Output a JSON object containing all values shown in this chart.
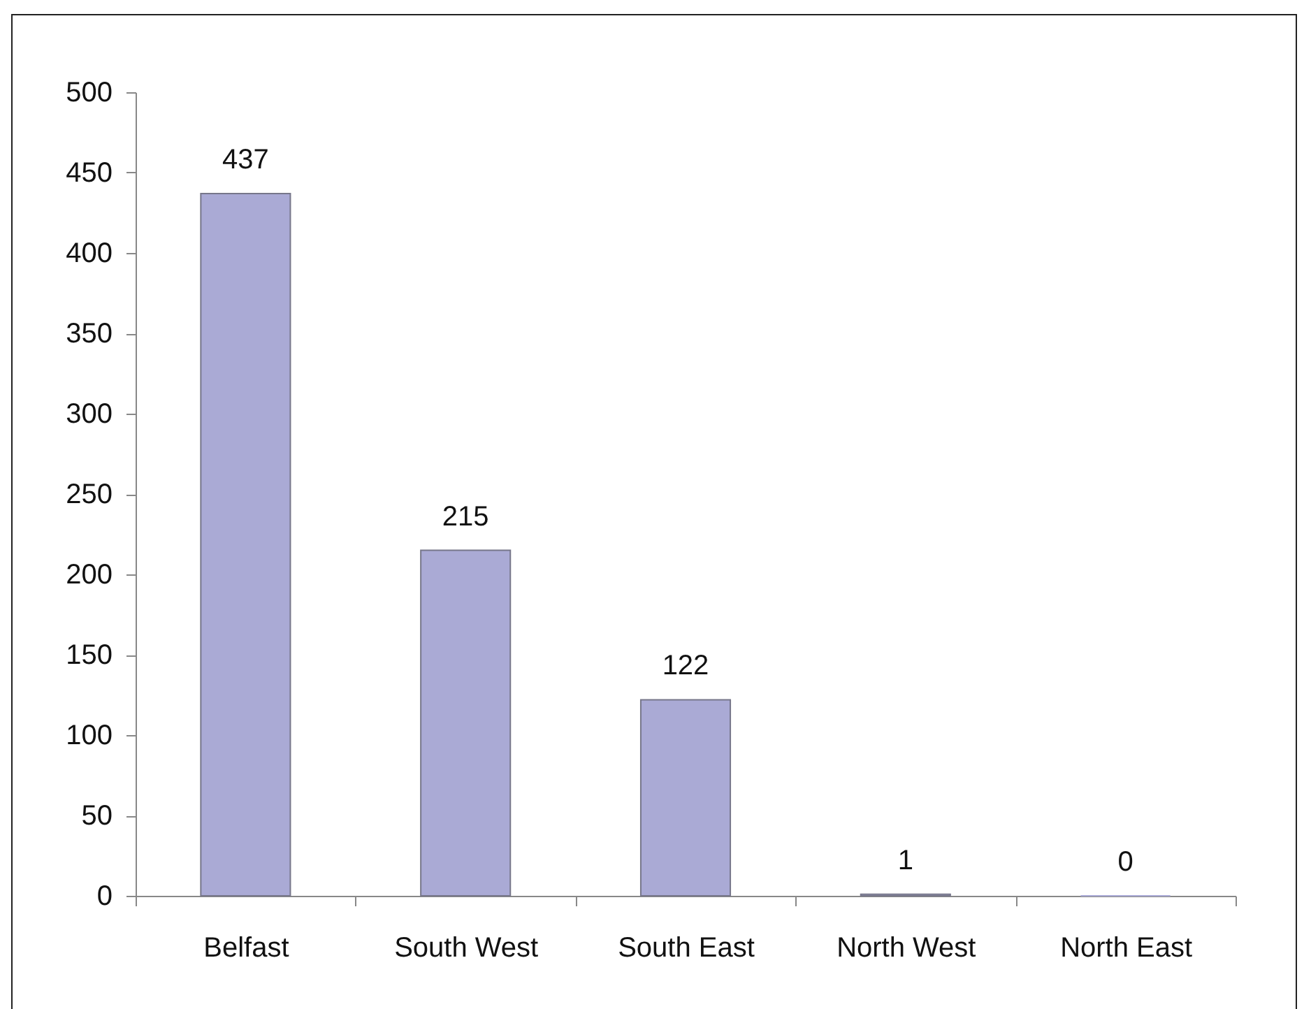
{
  "chart_data": {
    "type": "bar",
    "categories": [
      "Belfast",
      "South West",
      "South East",
      "North West",
      "North East"
    ],
    "values": [
      437,
      215,
      122,
      1,
      0
    ],
    "color": "#aaaad5",
    "ylim": [
      0,
      500
    ],
    "yticks": [
      0,
      50,
      100,
      150,
      200,
      250,
      300,
      350,
      400,
      450,
      500
    ],
    "data_labels": true
  }
}
